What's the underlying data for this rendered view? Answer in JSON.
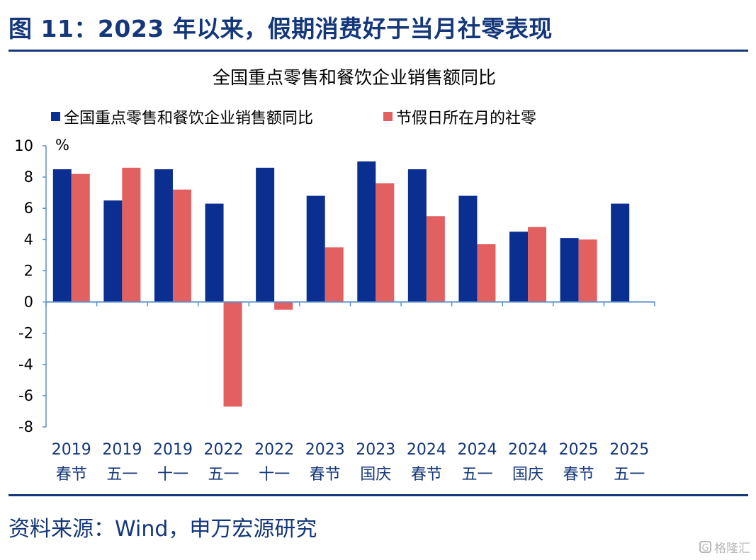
{
  "header": {
    "title": "图 11：2023 年以来，假期消费好于当月社零表现"
  },
  "footer": {
    "source": "资料来源：Wind，申万宏源研究"
  },
  "watermark": {
    "icon": "gelonghui-logo-icon",
    "text": "格隆汇"
  },
  "colors": {
    "brand": "#14377a",
    "series1": "#0b2e91",
    "series2": "#e36061",
    "axis": "#5b8ec9"
  },
  "chart_data": {
    "type": "bar",
    "title": "全国重点零售和餐饮企业销售额同比",
    "ylabel": "%",
    "ylim": [
      -8,
      10
    ],
    "yticks": [
      10,
      8,
      6,
      4,
      2,
      0,
      -2,
      -4,
      -6,
      -8
    ],
    "legend_position": "top-left",
    "categories": [
      [
        "2019",
        "春节"
      ],
      [
        "2019",
        "五一"
      ],
      [
        "2019",
        "十一"
      ],
      [
        "2022",
        "五一"
      ],
      [
        "2022",
        "十一"
      ],
      [
        "2023",
        "春节"
      ],
      [
        "2023",
        "国庆"
      ],
      [
        "2024",
        "春节"
      ],
      [
        "2024",
        "五一"
      ],
      [
        "2024",
        "国庆"
      ],
      [
        "2025",
        "春节"
      ],
      [
        "2025",
        "五一"
      ]
    ],
    "series": [
      {
        "name": "全国重点零售和餐饮企业销售额同比",
        "color": "#0b2e91",
        "values": [
          8.5,
          6.5,
          8.5,
          6.3,
          8.6,
          6.8,
          9.0,
          8.5,
          6.8,
          4.5,
          4.1,
          6.3
        ]
      },
      {
        "name": "节假日所在月的社零",
        "color": "#e36061",
        "values": [
          8.2,
          8.6,
          7.2,
          -6.7,
          -0.5,
          3.5,
          7.6,
          5.5,
          3.7,
          4.8,
          4.0,
          null
        ]
      }
    ]
  }
}
